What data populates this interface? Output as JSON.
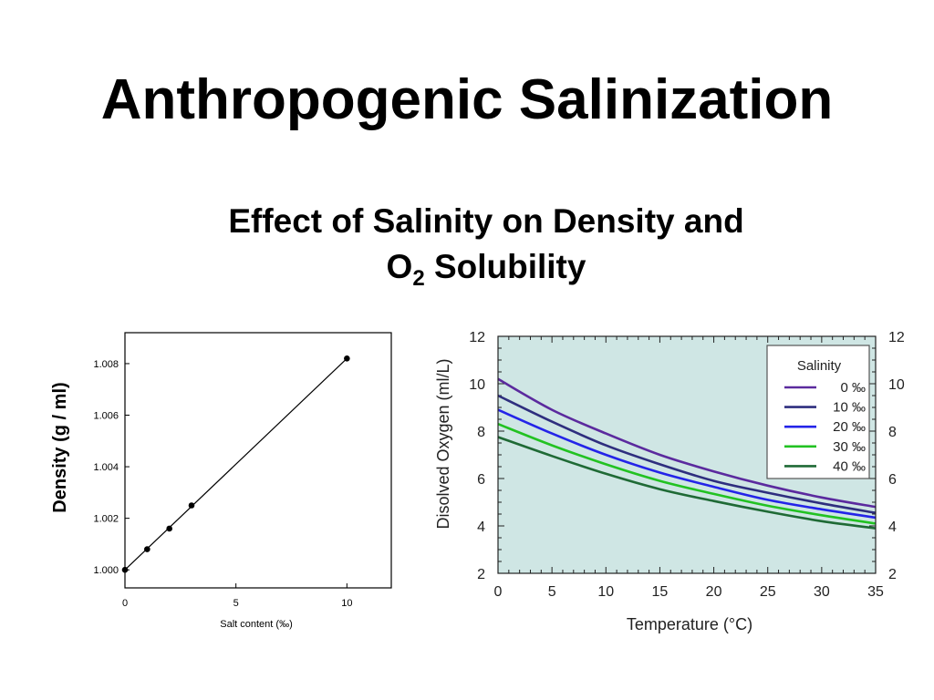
{
  "slide": {
    "title": "Anthropogenic Salinization",
    "subtitle_line1": "Effect of Salinity on Density and",
    "subtitle_o": "O",
    "subtitle_sub": "2",
    "subtitle_rest": " Solubility"
  },
  "chart_data": [
    {
      "type": "line",
      "title": "",
      "xlabel": "Salt content (‰)",
      "ylabel": "Density (g / ml)",
      "xlim": [
        0,
        12
      ],
      "ylim": [
        0.9993,
        1.0092
      ],
      "xticks": [
        0,
        5,
        10
      ],
      "xtick_labels": [
        "0",
        "5",
        "10"
      ],
      "yticks": [
        1.0,
        1.002,
        1.004,
        1.006,
        1.008
      ],
      "ytick_labels": [
        "1.000",
        "1.002",
        "1.004",
        "1.006",
        "1.008"
      ],
      "grid": false,
      "points": {
        "x": [
          0,
          1,
          2,
          3,
          10
        ],
        "y": [
          1.0,
          1.0008,
          1.0016,
          1.0025,
          1.0082
        ]
      },
      "line": {
        "x": [
          0,
          10
        ],
        "y": [
          1.0,
          1.0082
        ]
      },
      "colors": {
        "line": "#000000",
        "marker": "#000000"
      }
    },
    {
      "type": "line",
      "title": "",
      "xlabel": "Temperature (°C)",
      "ylabel": "Disolved Oxygen (ml/L)",
      "xlim": [
        0,
        35
      ],
      "ylim": [
        2,
        12
      ],
      "xticks": [
        0,
        5,
        10,
        15,
        20,
        25,
        30,
        35
      ],
      "yticks": [
        2,
        4,
        6,
        8,
        10,
        12
      ],
      "grid": false,
      "background": "#cfe6e4",
      "legend": {
        "title": "Salinity",
        "position": "top-right"
      },
      "x": [
        0,
        5,
        10,
        15,
        20,
        25,
        30,
        35
      ],
      "series": [
        {
          "name": "0 ‰",
          "color": "#5b2a9e",
          "values": [
            10.2,
            8.9,
            7.9,
            7.0,
            6.3,
            5.7,
            5.2,
            4.8
          ]
        },
        {
          "name": "10 ‰",
          "color": "#2e2e7e",
          "values": [
            9.5,
            8.4,
            7.4,
            6.6,
            5.9,
            5.4,
            4.95,
            4.55
          ]
        },
        {
          "name": "20 ‰",
          "color": "#2424e8",
          "values": [
            8.9,
            7.9,
            7.0,
            6.25,
            5.65,
            5.1,
            4.7,
            4.35
          ]
        },
        {
          "name": "30 ‰",
          "color": "#22c222",
          "values": [
            8.3,
            7.4,
            6.6,
            5.9,
            5.35,
            4.85,
            4.45,
            4.1
          ]
        },
        {
          "name": "40 ‰",
          "color": "#1f6a35",
          "values": [
            7.75,
            6.95,
            6.2,
            5.55,
            5.05,
            4.6,
            4.2,
            3.9
          ]
        }
      ]
    }
  ]
}
